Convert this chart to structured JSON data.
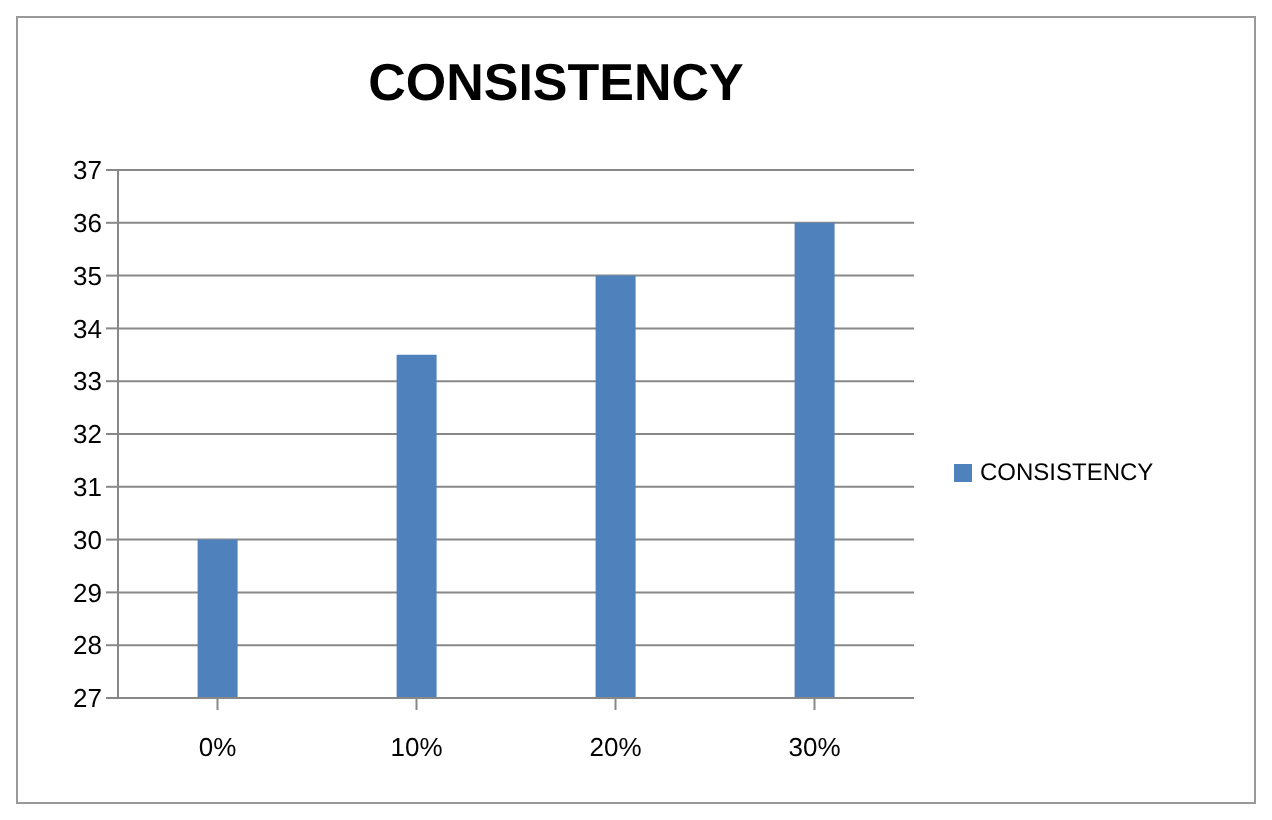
{
  "chart_data": {
    "type": "bar",
    "title": "CONSISTENCY",
    "categories": [
      "0%",
      "10%",
      "20%",
      "30%"
    ],
    "series": [
      {
        "name": "CONSISTENCY",
        "color": "#4f81bd",
        "values": [
          30,
          33.5,
          35,
          36
        ]
      }
    ],
    "ylim": [
      27,
      37
    ],
    "yticks": [
      27,
      28,
      29,
      30,
      31,
      32,
      33,
      34,
      35,
      36,
      37
    ],
    "grid": "y",
    "legend": "right"
  }
}
